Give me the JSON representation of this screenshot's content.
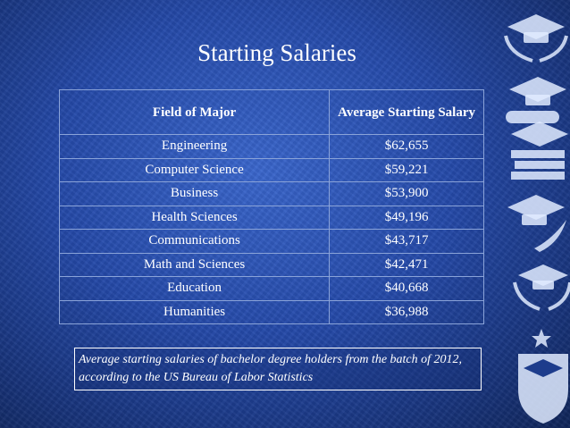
{
  "title": "Starting Salaries",
  "table": {
    "headers": [
      "Field of Major",
      "Average Starting Salary"
    ],
    "rows": [
      [
        "Engineering",
        "$62,655"
      ],
      [
        "Computer Science",
        "$59,221"
      ],
      [
        "Business",
        "$53,900"
      ],
      [
        "Health Sciences",
        "$49,196"
      ],
      [
        "Communications",
        "$43,717"
      ],
      [
        "Math and Sciences",
        "$42,471"
      ],
      [
        "Education",
        "$40,668"
      ],
      [
        "Humanities",
        "$36,988"
      ]
    ]
  },
  "caption": "Average starting salaries of bachelor degree holders from the batch of 2012, according to the US Bureau of Labor Statistics",
  "decorations": [
    "graduation-cap-laurel-icon",
    "graduation-cap-diploma-icon",
    "graduation-cap-books-icon",
    "graduation-cap-quill-icon",
    "graduation-cap-laurel-icon",
    "graduation-cap-shield-icon"
  ],
  "colors": {
    "background": "#2449a8",
    "table_border": "#8aa3d8",
    "text": "#ffffff"
  }
}
